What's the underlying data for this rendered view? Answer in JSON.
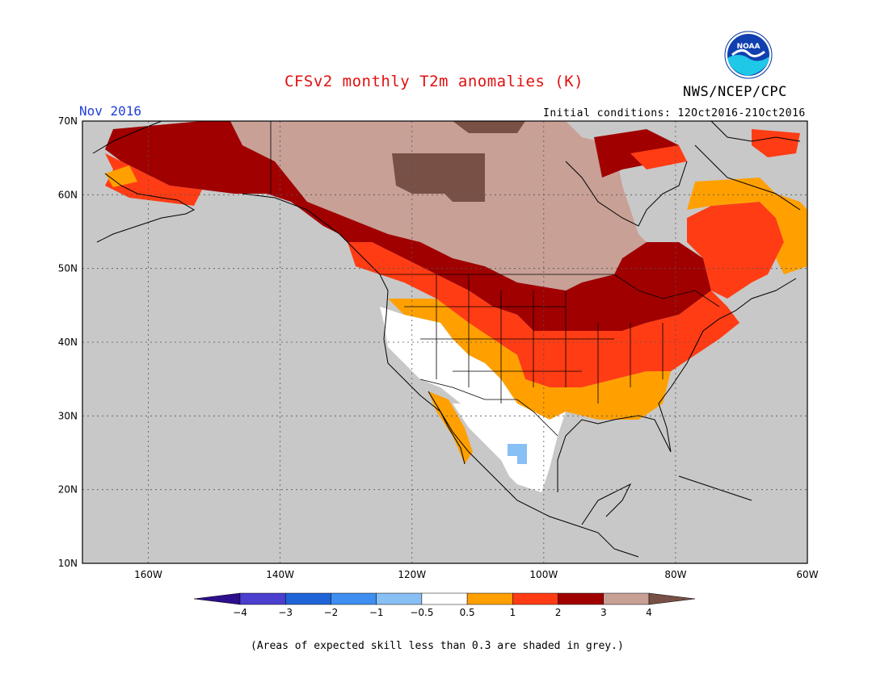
{
  "header": {
    "title": "CFSv2 monthly T2m anomalies (K)",
    "agency": "NWS/NCEP/CPC",
    "month": "Nov 2016",
    "initial_conditions": "Initial conditions: 12Oct2016-21Oct2016",
    "logo_text": "NOAA"
  },
  "map": {
    "lat_labels": [
      "70N",
      "60N",
      "50N",
      "40N",
      "30N",
      "20N",
      "10N"
    ],
    "lon_labels": [
      "160W",
      "140W",
      "120W",
      "100W",
      "80W",
      "60W"
    ],
    "lat_range": [
      10,
      70
    ],
    "lon_range": [
      -170,
      -60
    ]
  },
  "colorbar": {
    "labels": [
      "-4",
      "-3",
      "-2",
      "-1",
      "-0.5",
      "0.5",
      "1",
      "2",
      "3",
      "4"
    ],
    "colors": [
      "#2c0f8c",
      "#4b3fcf",
      "#1f63d6",
      "#3f8ff0",
      "#88bff5",
      "#ffffff",
      "#ffa000",
      "#ff3c14",
      "#a00000",
      "#c8a096",
      "#785046"
    ]
  },
  "colors": {
    "title": "#e01010",
    "month": "#1f3fdc",
    "land_no_skill": "#c8c8c8",
    "ocean": "#c8c8c8"
  },
  "footer": {
    "note": "(Areas of expected skill less than 0.3 are shaded in grey.)"
  }
}
